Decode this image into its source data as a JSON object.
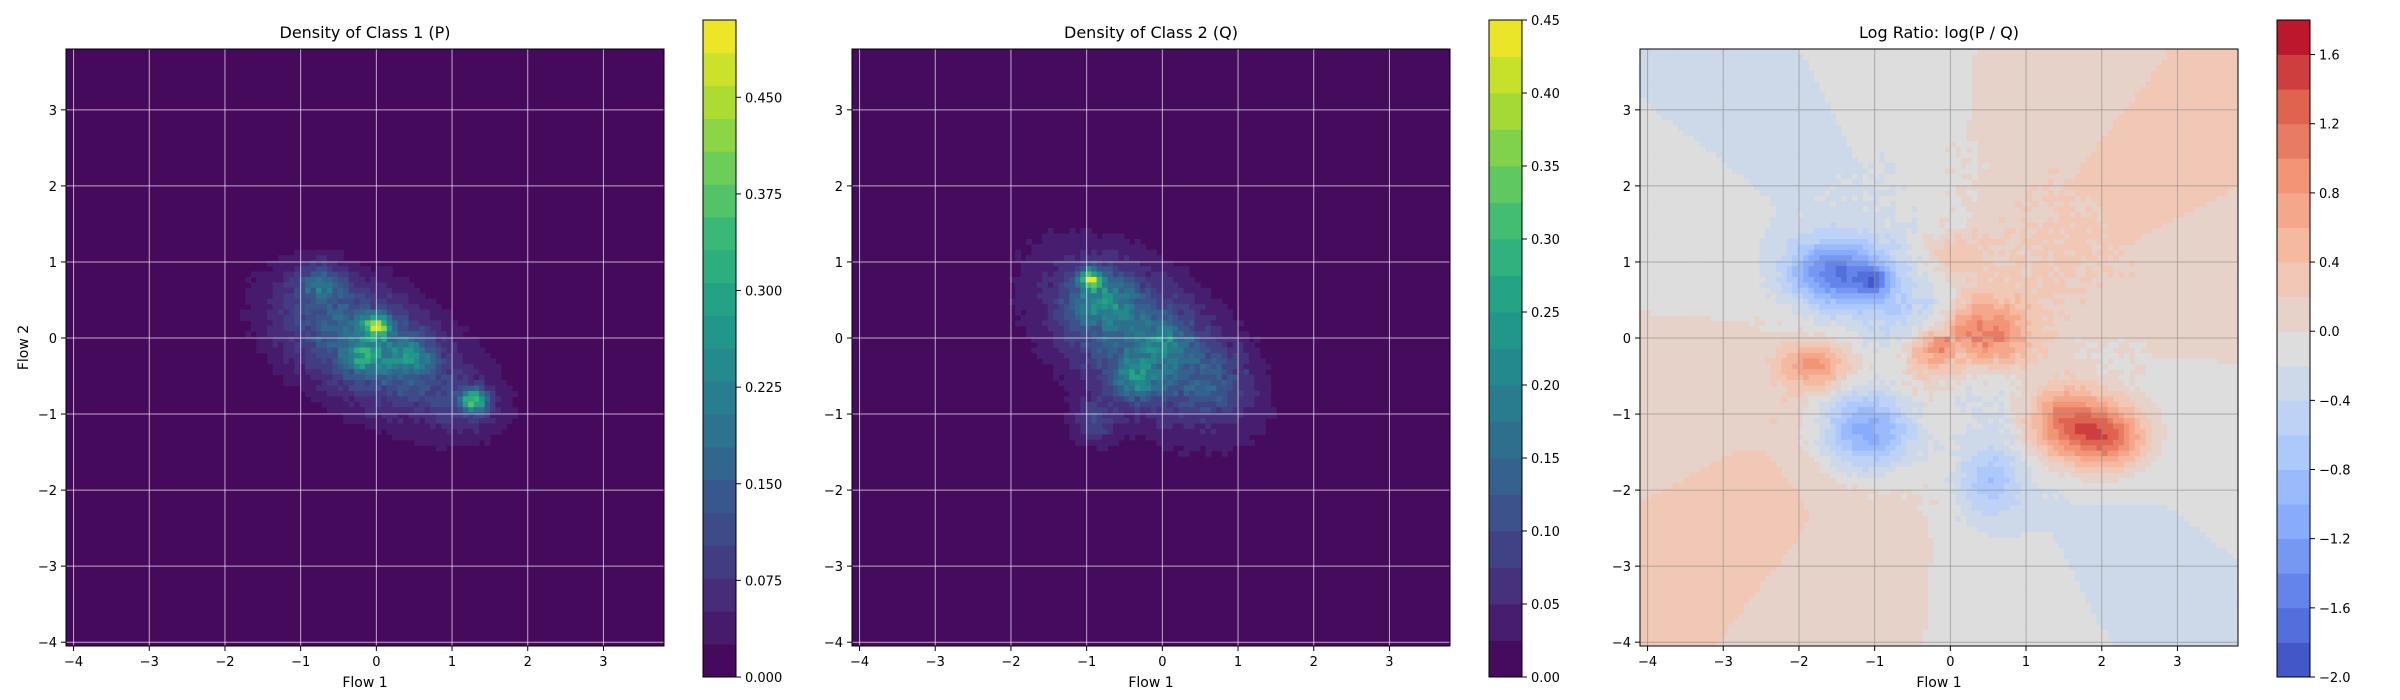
{
  "chart_data": [
    {
      "type": "heatmap",
      "title": "Density of Class 1 (P)",
      "xlabel": "Flow 1",
      "ylabel": "Flow 2",
      "xlim": [
        -4.1,
        3.8
      ],
      "ylim": [
        -4.05,
        3.8
      ],
      "x_ticks": [
        -4,
        -3,
        -2,
        -1,
        0,
        1,
        2,
        3
      ],
      "y_ticks": [
        -4,
        -3,
        -2,
        -1,
        0,
        1,
        2,
        3
      ],
      "grid": true,
      "colormap": "viridis",
      "colorbar": {
        "range": [
          0,
          0.51
        ],
        "levels": 20,
        "ticks": [
          0.0,
          0.075,
          0.15,
          0.225,
          0.3,
          0.375,
          0.45
        ],
        "tick_labels": [
          "0.000",
          "0.075",
          "0.150",
          "0.225",
          "0.300",
          "0.375",
          "0.450"
        ]
      },
      "components": [
        {
          "x": -0.1,
          "y": -0.1,
          "sx": 0.75,
          "sy": 0.55,
          "rho": -0.45,
          "w": 0.16
        },
        {
          "x": 0.0,
          "y": 0.15,
          "sx": 0.12,
          "sy": 0.1,
          "rho": 0.0,
          "w": 0.32
        },
        {
          "x": -0.15,
          "y": -0.25,
          "sx": 0.15,
          "sy": 0.12,
          "rho": 0.0,
          "w": 0.14
        },
        {
          "x": 0.45,
          "y": -0.25,
          "sx": 0.2,
          "sy": 0.15,
          "rho": 0.0,
          "w": 0.12
        },
        {
          "x": -0.75,
          "y": 0.7,
          "sx": 0.22,
          "sy": 0.18,
          "rho": 0.0,
          "w": 0.12
        },
        {
          "x": 1.3,
          "y": -0.82,
          "sx": 0.12,
          "sy": 0.1,
          "rho": 0.0,
          "w": 0.3
        },
        {
          "x": 1.2,
          "y": -0.9,
          "sx": 0.4,
          "sy": 0.3,
          "rho": 0.0,
          "w": 0.05
        },
        {
          "x": -0.2,
          "y": -0.1,
          "sx": 1.1,
          "sy": 0.85,
          "rho": -0.4,
          "w": 0.03
        }
      ]
    },
    {
      "type": "heatmap",
      "title": "Density of Class 2 (Q)",
      "xlabel": "Flow 1",
      "ylabel": "",
      "xlim": [
        -4.1,
        3.8
      ],
      "ylim": [
        -4.05,
        3.8
      ],
      "x_ticks": [
        -4,
        -3,
        -2,
        -1,
        0,
        1,
        2,
        3
      ],
      "y_ticks": [
        -4,
        -3,
        -2,
        -1,
        0,
        1,
        2,
        3
      ],
      "grid": true,
      "colormap": "viridis",
      "colorbar": {
        "range": [
          0,
          0.45
        ],
        "levels": 18,
        "ticks": [
          0.0,
          0.05,
          0.1,
          0.15,
          0.2,
          0.25,
          0.3,
          0.35,
          0.4,
          0.45
        ],
        "tick_labels": [
          "0.00",
          "0.05",
          "0.10",
          "0.15",
          "0.20",
          "0.25",
          "0.30",
          "0.35",
          "0.40",
          "0.45"
        ]
      },
      "components": [
        {
          "x": -0.3,
          "y": 0.0,
          "sx": 0.8,
          "sy": 0.7,
          "rho": -0.5,
          "w": 0.13
        },
        {
          "x": -0.95,
          "y": 0.78,
          "sx": 0.1,
          "sy": 0.09,
          "rho": 0.0,
          "w": 0.28
        },
        {
          "x": -0.8,
          "y": 0.5,
          "sx": 0.25,
          "sy": 0.2,
          "rho": 0.0,
          "w": 0.12
        },
        {
          "x": -0.35,
          "y": -0.55,
          "sx": 0.22,
          "sy": 0.18,
          "rho": 0.0,
          "w": 0.12
        },
        {
          "x": 0.05,
          "y": -0.05,
          "sx": 0.2,
          "sy": 0.15,
          "rho": 0.0,
          "w": 0.08
        },
        {
          "x": -0.9,
          "y": -1.1,
          "sx": 0.2,
          "sy": 0.2,
          "rho": 0.0,
          "w": 0.08
        },
        {
          "x": 0.7,
          "y": -0.6,
          "sx": 0.35,
          "sy": 0.3,
          "rho": 0.0,
          "w": 0.05
        },
        {
          "x": -0.3,
          "y": -0.15,
          "sx": 1.2,
          "sy": 0.95,
          "rho": -0.45,
          "w": 0.03
        }
      ]
    },
    {
      "type": "heatmap",
      "title": "Log Ratio: log(P / Q)",
      "xlabel": "Flow 1",
      "ylabel": "",
      "xlim": [
        -4.1,
        3.8
      ],
      "ylim": [
        -4.05,
        3.8
      ],
      "x_ticks": [
        -4,
        -3,
        -2,
        -1,
        0,
        1,
        2,
        3
      ],
      "y_ticks": [
        -4,
        -3,
        -2,
        -1,
        0,
        1,
        2,
        3
      ],
      "grid": true,
      "colormap": "coolwarm",
      "colorbar": {
        "range": [
          -2.0,
          1.8
        ],
        "levels": 19,
        "ticks": [
          -2.0,
          -1.6,
          -1.2,
          -0.8,
          -0.4,
          0.0,
          0.4,
          0.8,
          1.2,
          1.6
        ],
        "tick_labels": [
          "−2.0",
          "−1.6",
          "−1.2",
          "−0.8",
          "−0.4",
          "0.0",
          "0.4",
          "0.8",
          "1.2",
          "1.6"
        ]
      },
      "features": [
        {
          "x": -1.5,
          "y": 0.85,
          "sx": 0.45,
          "sy": 0.3,
          "a": -1.4
        },
        {
          "x": -1.0,
          "y": 0.75,
          "sx": 0.15,
          "sy": 0.12,
          "a": -0.8
        },
        {
          "x": -1.1,
          "y": -1.2,
          "sx": 0.45,
          "sy": 0.4,
          "a": -1.3
        },
        {
          "x": 0.5,
          "y": -1.9,
          "sx": 0.3,
          "sy": 0.35,
          "a": -0.6
        },
        {
          "x": 1.5,
          "y": -1.1,
          "sx": 0.35,
          "sy": 0.35,
          "a": 1.2
        },
        {
          "x": 2.1,
          "y": -1.3,
          "sx": 0.35,
          "sy": 0.3,
          "a": 1.3
        },
        {
          "x": 0.5,
          "y": 0.0,
          "sx": 0.4,
          "sy": 0.3,
          "a": 1.0
        },
        {
          "x": -0.2,
          "y": -0.1,
          "sx": 0.25,
          "sy": 0.2,
          "a": 0.6
        },
        {
          "x": -1.8,
          "y": -0.35,
          "sx": 0.3,
          "sy": 0.2,
          "a": 0.8
        },
        {
          "x": -0.8,
          "y": 0.2,
          "sx": 0.5,
          "sy": 0.4,
          "a": -0.35
        },
        {
          "x": 0.0,
          "y": 1.1,
          "sx": 0.3,
          "sy": 0.2,
          "a": 0.35
        }
      ]
    }
  ]
}
